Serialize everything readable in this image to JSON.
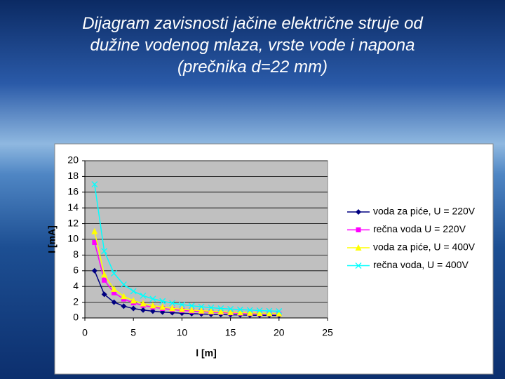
{
  "chart_data": {
    "type": "line",
    "title": [
      "Dijagram zavisnosti jačine električne struje od",
      "dužine vodenog mlaza, vrste vode i napona",
      "(prečnika d=22 mm)"
    ],
    "x_label": "l [m]",
    "y_label": "I [mA]",
    "x": [
      1,
      2,
      3,
      4,
      5,
      6,
      7,
      8,
      9,
      10,
      11,
      12,
      13,
      14,
      15,
      16,
      17,
      18,
      19,
      20
    ],
    "xlim": [
      0,
      25
    ],
    "xticks": [
      0,
      5,
      10,
      15,
      20,
      25
    ],
    "ylim": [
      0,
      20
    ],
    "yticks": [
      0,
      2,
      4,
      6,
      8,
      10,
      12,
      14,
      16,
      18,
      20
    ],
    "grid": true,
    "legend": "right",
    "series": [
      {
        "name": "voda za piće, U = 220V",
        "color": "#000080",
        "marker": "diamond",
        "values": [
          6,
          3,
          2,
          1.5,
          1.2,
          1,
          0.86,
          0.75,
          0.67,
          0.6,
          0.55,
          0.5,
          0.46,
          0.43,
          0.4,
          0.38,
          0.35,
          0.33,
          0.32,
          0.3
        ]
      },
      {
        "name": "rečna voda U = 220V",
        "color": "#ff00ff",
        "marker": "square",
        "values": [
          9.6,
          4.8,
          3.2,
          2.4,
          1.92,
          1.6,
          1.37,
          1.2,
          1.07,
          0.96,
          0.87,
          0.8,
          0.74,
          0.69,
          0.64,
          0.6,
          0.56,
          0.53,
          0.51,
          0.48
        ]
      },
      {
        "name": "voda za piće, U = 400V",
        "color": "#ffff00",
        "marker": "triangle",
        "values": [
          11,
          5.5,
          3.67,
          2.75,
          2.2,
          1.83,
          1.57,
          1.38,
          1.22,
          1.1,
          1,
          0.92,
          0.85,
          0.79,
          0.73,
          0.69,
          0.65,
          0.61,
          0.58,
          0.55
        ]
      },
      {
        "name": "rečna voda, U = 400V",
        "color": "#00ffff",
        "marker": "x",
        "values": [
          17,
          8.5,
          5.67,
          4.25,
          3.4,
          2.83,
          2.43,
          2.13,
          1.89,
          1.7,
          1.55,
          1.42,
          1.31,
          1.21,
          1.13,
          1.06,
          1,
          0.94,
          0.89,
          0.85
        ]
      }
    ]
  }
}
